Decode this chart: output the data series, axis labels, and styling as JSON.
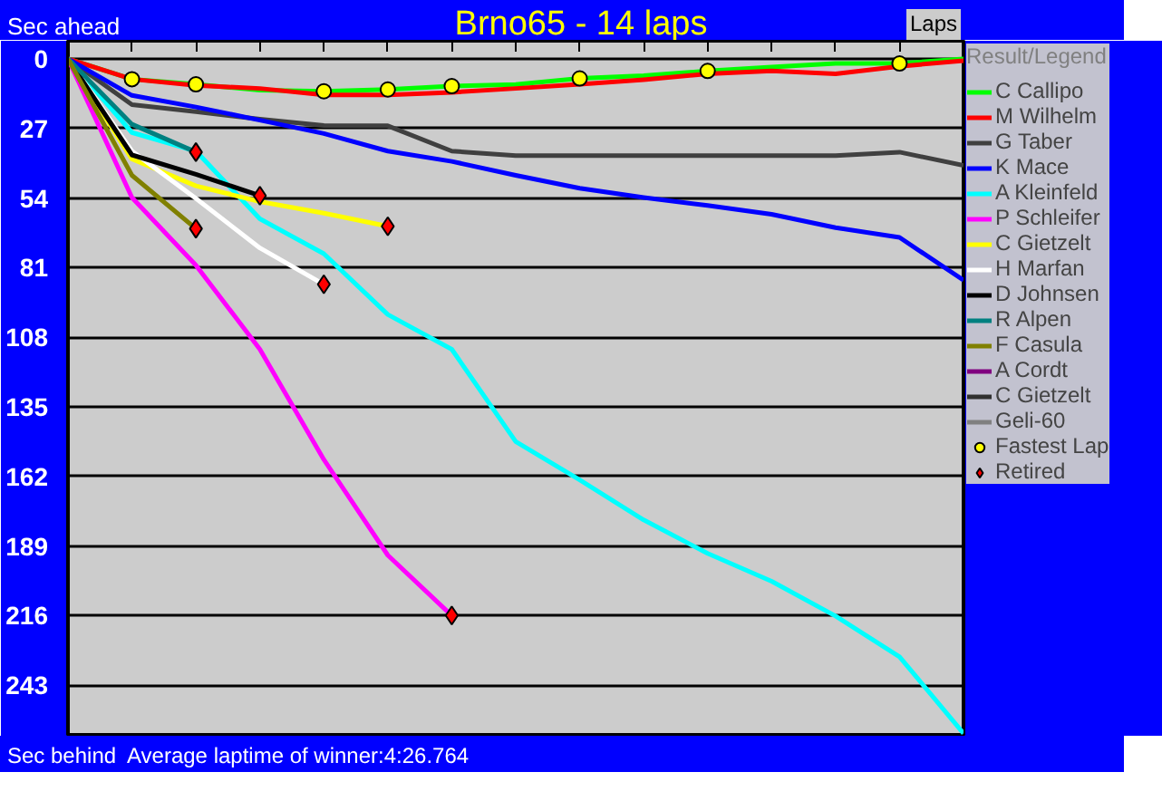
{
  "chart_data": {
    "type": "line",
    "title": "Brno65 - 14 laps",
    "xlabel": "Laps",
    "legend_title": "Result/Legend",
    "annotations": [
      "Sec ahead",
      "Sec behind",
      "Average laptime of winner:4:26.764"
    ],
    "categories": [
      null,
      null,
      null,
      null,
      null,
      null,
      null,
      null,
      null,
      null,
      null,
      null,
      null,
      null,
      null
    ],
    "ylim": [
      263,
      -7
    ],
    "yticks": [
      0,
      27,
      54,
      81,
      108,
      135,
      162,
      189,
      216,
      243
    ],
    "tick_labels": "y",
    "grid": "y",
    "legend": "right",
    "line_style": "solid",
    "series": [
      {
        "name": "C Callipo",
        "color": "#00ff00",
        "values": [
          0,
          7.9,
          9.9,
          12.2,
          12.6,
          11.9,
          10.6,
          10,
          7.6,
          6.5,
          4.7,
          3.2,
          1.8,
          1.8,
          0
        ]
      },
      {
        "name": "M Wilhelm",
        "color": "#ff0000",
        "values": [
          0,
          7.9,
          10.3,
          11.5,
          14,
          14,
          13,
          11.5,
          9.9,
          8.1,
          5.8,
          4.7,
          5.8,
          2.9,
          0.7
        ]
      },
      {
        "name": "G Taber",
        "color": "#404040",
        "values": [
          0,
          17.8,
          20.5,
          23.4,
          25.9,
          26,
          35.8,
          37.6,
          37.6,
          37.6,
          37.6,
          37.6,
          37.6,
          36.2,
          41.4
        ]
      },
      {
        "name": "K Mace",
        "color": "#0000ff",
        "values": [
          0,
          14.2,
          18.7,
          23.8,
          29,
          35.8,
          39.8,
          45.2,
          50.2,
          53.8,
          56.9,
          60.3,
          65.5,
          69.3,
          85.9
        ]
      },
      {
        "name": "A Kleinfeld",
        "color": "#00ffff",
        "values": [
          0,
          28.6,
          35.8,
          62.1,
          75.6,
          99.2,
          112.7,
          148.5,
          163.4,
          178.9,
          191.9,
          202.7,
          216.2,
          232,
          261.7
        ]
      },
      {
        "name": "P Schleifer",
        "color": "#ff00ff",
        "values": [
          0,
          53.8,
          80.1,
          112.7,
          155.5,
          192.6,
          216,
          null,
          null,
          null,
          null,
          null,
          null,
          null,
          null
        ]
      },
      {
        "name": "C Gietzelt",
        "color": "#ffff00",
        "values": [
          0,
          38.9,
          49.3,
          55.4,
          59.9,
          65,
          null,
          null,
          null,
          null,
          null,
          null,
          null,
          null,
          null
        ]
      },
      {
        "name": "H Marfan",
        "color": "#ffffff",
        "values": [
          0,
          35.8,
          54.2,
          73.4,
          87.5,
          null,
          null,
          null,
          null,
          null,
          null,
          null,
          null,
          null,
          null
        ]
      },
      {
        "name": "D Johnsen",
        "color": "#000000",
        "values": [
          0,
          37.3,
          44.8,
          53.1,
          null,
          null,
          null,
          null,
          null,
          null,
          null,
          null,
          null,
          null,
          null
        ]
      },
      {
        "name": "R Alpen",
        "color": "#008080",
        "values": [
          0,
          25.4,
          36.2,
          null,
          null,
          null,
          null,
          null,
          null,
          null,
          null,
          null,
          null,
          null,
          null
        ]
      },
      {
        "name": "F Casula",
        "color": "#808000",
        "values": [
          0,
          45.2,
          65.9,
          null,
          null,
          null,
          null,
          null,
          null,
          null,
          null,
          null,
          null,
          null,
          null
        ]
      },
      {
        "name": "A Cordt",
        "color": "#800080",
        "values": [
          null,
          null,
          null,
          null,
          null,
          null,
          null,
          null,
          null,
          null,
          null,
          null,
          null,
          null,
          null
        ]
      },
      {
        "name": "C Gietzelt",
        "color": "#303030",
        "values": [
          null,
          null,
          null,
          null,
          null,
          null,
          null,
          null,
          null,
          null,
          null,
          null,
          null,
          null,
          null
        ]
      },
      {
        "name": "Geli-60",
        "color": "#808080",
        "values": [
          null,
          null,
          null,
          null,
          null,
          null,
          null,
          null,
          null,
          null,
          null,
          null,
          null,
          null,
          null
        ]
      },
      {
        "name": "Fastest Lap",
        "type": "scatter",
        "marker": "circle",
        "color": "#ffff00",
        "values": [
          null,
          7.9,
          9.9,
          null,
          12.6,
          11.9,
          10.6,
          null,
          7.6,
          null,
          4.7,
          null,
          null,
          1.8,
          null
        ]
      },
      {
        "name": "Retired",
        "type": "scatter",
        "marker": "diamond",
        "color": "#ff0000",
        "values": [
          null,
          null,
          36.2,
          53.1,
          87.5,
          65,
          216,
          null,
          null,
          null,
          null,
          null,
          null,
          null,
          null
        ]
      },
      {
        "type": "scatter",
        "marker": "diamond",
        "color": "#ff0000",
        "values": [
          null,
          null,
          65.9,
          null,
          null,
          null,
          null,
          null,
          null,
          null,
          null,
          null,
          null,
          null,
          null
        ]
      }
    ]
  }
}
